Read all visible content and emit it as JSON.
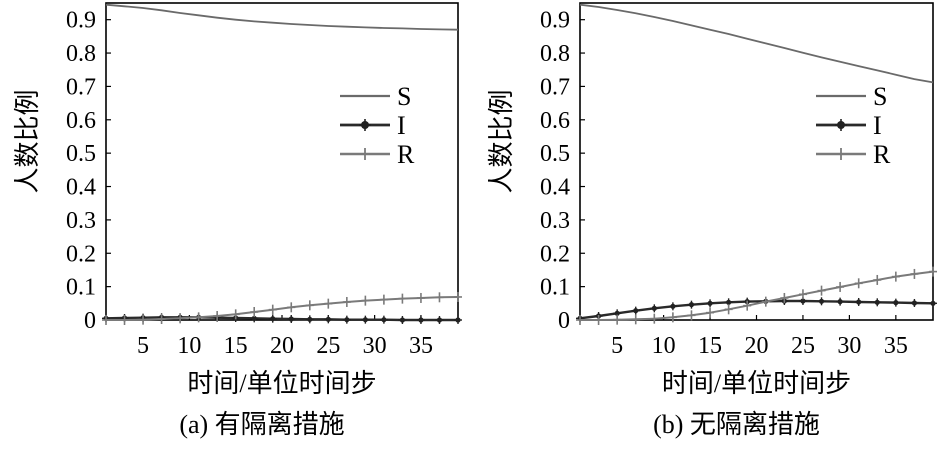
{
  "chart_data": [
    {
      "type": "line",
      "caption": "(a) 有隔离措施",
      "xlabel": "时间/单位时间步",
      "ylabel": "人数比例",
      "xlim": [
        1,
        39
      ],
      "ylim": [
        0,
        0.95
      ],
      "xticks": [
        5,
        10,
        15,
        20,
        25,
        30,
        35
      ],
      "yticks": [
        0,
        0.1,
        0.2,
        0.3,
        0.4,
        0.5,
        0.6,
        0.7,
        0.8,
        0.9
      ],
      "ytick_labels": [
        "0",
        "0.1",
        "0.2",
        "0.3",
        "0.4",
        "0.5",
        "0.6",
        "0.7",
        "0.8",
        "0.9"
      ],
      "legend": "right",
      "x": [
        1,
        3,
        5,
        7,
        9,
        11,
        13,
        15,
        17,
        19,
        21,
        23,
        25,
        27,
        29,
        31,
        33,
        35,
        37,
        39
      ],
      "series": [
        {
          "name": "S",
          "marker": "none",
          "values": [
            0.945,
            0.94,
            0.935,
            0.928,
            0.92,
            0.913,
            0.906,
            0.9,
            0.895,
            0.891,
            0.887,
            0.884,
            0.881,
            0.879,
            0.877,
            0.875,
            0.874,
            0.872,
            0.871,
            0.87
          ]
        },
        {
          "name": "I",
          "marker": "star",
          "values": [
            0.005,
            0.006,
            0.007,
            0.008,
            0.008,
            0.008,
            0.007,
            0.006,
            0.005,
            0.004,
            0.003,
            0.002,
            0.002,
            0.001,
            0.001,
            0.001,
            0.0,
            0.0,
            0.0,
            0.0
          ]
        },
        {
          "name": "R",
          "marker": "plus",
          "values": [
            0.0,
            0.0,
            0.001,
            0.003,
            0.005,
            0.008,
            0.012,
            0.017,
            0.024,
            0.031,
            0.038,
            0.044,
            0.049,
            0.054,
            0.058,
            0.061,
            0.064,
            0.066,
            0.068,
            0.069
          ]
        }
      ]
    },
    {
      "type": "line",
      "caption": "(b) 无隔离措施",
      "xlabel": "时间/单位时间步",
      "ylabel": "人数比例",
      "xlim": [
        1,
        39
      ],
      "ylim": [
        0,
        0.95
      ],
      "xticks": [
        5,
        10,
        15,
        20,
        25,
        30,
        35
      ],
      "yticks": [
        0,
        0.1,
        0.2,
        0.3,
        0.4,
        0.5,
        0.6,
        0.7,
        0.8,
        0.9
      ],
      "ytick_labels": [
        "0",
        "0.1",
        "0.2",
        "0.3",
        "0.4",
        "0.5",
        "0.6",
        "0.7",
        "0.8",
        "0.9"
      ],
      "legend": "right",
      "x": [
        1,
        3,
        5,
        7,
        9,
        11,
        13,
        15,
        17,
        19,
        21,
        23,
        25,
        27,
        29,
        31,
        33,
        35,
        37,
        39
      ],
      "series": [
        {
          "name": "S",
          "marker": "none",
          "values": [
            0.945,
            0.938,
            0.929,
            0.919,
            0.908,
            0.896,
            0.883,
            0.87,
            0.857,
            0.843,
            0.829,
            0.815,
            0.801,
            0.787,
            0.774,
            0.761,
            0.748,
            0.735,
            0.722,
            0.712
          ]
        },
        {
          "name": "I",
          "marker": "star",
          "values": [
            0.005,
            0.012,
            0.02,
            0.028,
            0.035,
            0.041,
            0.046,
            0.05,
            0.053,
            0.055,
            0.056,
            0.057,
            0.057,
            0.056,
            0.055,
            0.054,
            0.053,
            0.052,
            0.051,
            0.05
          ]
        },
        {
          "name": "R",
          "marker": "plus",
          "values": [
            0.0,
            0.0,
            0.001,
            0.002,
            0.004,
            0.008,
            0.014,
            0.022,
            0.032,
            0.043,
            0.055,
            0.066,
            0.077,
            0.088,
            0.099,
            0.11,
            0.12,
            0.13,
            0.138,
            0.145
          ]
        }
      ]
    }
  ]
}
